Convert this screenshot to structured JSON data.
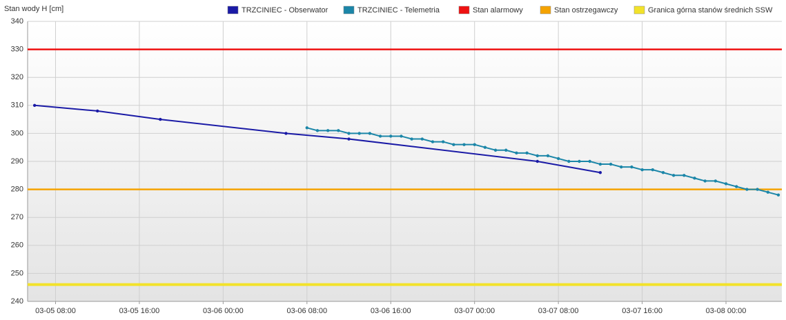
{
  "chart_data": {
    "type": "line",
    "y_axis_label": "Stan wody H [cm]",
    "ylim": [
      240,
      340
    ],
    "yticks": [
      240,
      250,
      260,
      270,
      280,
      290,
      300,
      310,
      320,
      330,
      340
    ],
    "xlim": [
      "03-05 05:20",
      "03-08 05:20"
    ],
    "xticks": [
      "03-05 08:00",
      "03-05 16:00",
      "03-06 00:00",
      "03-06 08:00",
      "03-06 16:00",
      "03-07 00:00",
      "03-07 08:00",
      "03-07 16:00",
      "03-08 00:00"
    ],
    "grid": true,
    "legend": "top-right",
    "series": [
      {
        "name": "TRZCINIEC - Obserwator",
        "color": "#1a1aa6",
        "x": [
          "03-05 06:00",
          "03-05 12:00",
          "03-05 18:00",
          "03-06 06:00",
          "03-06 12:00",
          "03-07 06:00",
          "03-07 12:00"
        ],
        "values": [
          310,
          308,
          305,
          300,
          298,
          290,
          286
        ]
      },
      {
        "name": "TRZCINIEC - Telemetria",
        "color": "#1b86a8",
        "x": [
          "03-06 08:00",
          "03-06 09:00",
          "03-06 10:00",
          "03-06 11:00",
          "03-06 12:00",
          "03-06 13:00",
          "03-06 14:00",
          "03-06 15:00",
          "03-06 16:00",
          "03-06 17:00",
          "03-06 18:00",
          "03-06 19:00",
          "03-06 20:00",
          "03-06 21:00",
          "03-06 22:00",
          "03-06 23:00",
          "03-07 00:00",
          "03-07 01:00",
          "03-07 02:00",
          "03-07 03:00",
          "03-07 04:00",
          "03-07 05:00",
          "03-07 06:00",
          "03-07 07:00",
          "03-07 08:00",
          "03-07 09:00",
          "03-07 10:00",
          "03-07 11:00",
          "03-07 12:00",
          "03-07 13:00",
          "03-07 14:00",
          "03-07 15:00",
          "03-07 16:00",
          "03-07 17:00",
          "03-07 18:00",
          "03-07 19:00",
          "03-07 20:00",
          "03-07 21:00",
          "03-07 22:00",
          "03-07 23:00",
          "03-08 00:00",
          "03-08 01:00",
          "03-08 02:00",
          "03-08 03:00",
          "03-08 04:00",
          "03-08 05:00"
        ],
        "values": [
          302,
          301,
          301,
          301,
          300,
          300,
          300,
          299,
          299,
          299,
          298,
          298,
          297,
          297,
          296,
          296,
          296,
          295,
          294,
          294,
          293,
          293,
          292,
          292,
          291,
          290,
          290,
          290,
          289,
          289,
          288,
          288,
          287,
          287,
          286,
          285,
          285,
          284,
          283,
          283,
          282,
          281,
          280,
          280,
          279,
          278
        ]
      }
    ],
    "thresholds": [
      {
        "name": "Stan alarmowy",
        "color": "#ee1111",
        "value": 330
      },
      {
        "name": "Stan ostrzegawczy",
        "color": "#f5a300",
        "value": 280
      },
      {
        "name": "Granica górna stanów średnich SSW",
        "color": "#f2e22a",
        "value": 246
      }
    ]
  }
}
